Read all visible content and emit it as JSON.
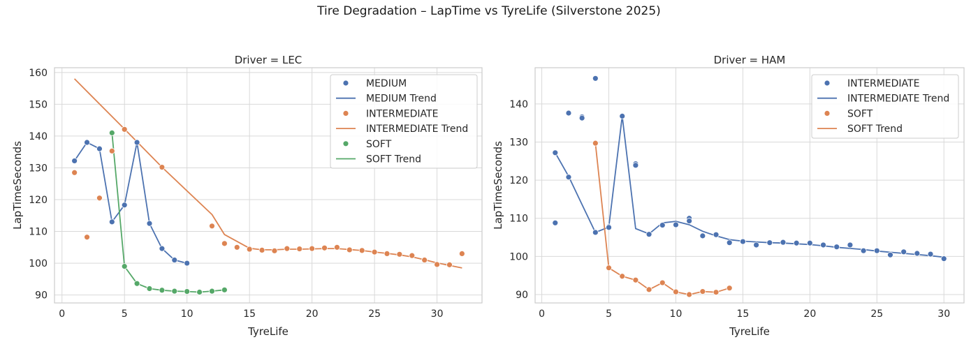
{
  "figure": {
    "title": "Tire Degradation – LapTime vs TyreLife (Silverstone 2025)"
  },
  "colors": {
    "MEDIUM": "#4c72b0",
    "INTERMEDIATE_LEC": "#dd8452",
    "SOFT_LEC": "#55a868",
    "INTERMEDIATE_HAM": "#4c72b0",
    "SOFT_HAM": "#dd8452",
    "grid": "#d9d9d9",
    "frame": "#cccccc"
  },
  "chart_data": [
    {
      "type": "scatter",
      "title": "Driver = LEC",
      "xlabel": "TyreLife",
      "ylabel": "LapTimeSeconds",
      "xlim": [
        -0.6,
        33.6
      ],
      "ylim": [
        87.5,
        161.5
      ],
      "xticks": [
        0,
        5,
        10,
        15,
        20,
        25,
        30
      ],
      "yticks": [
        90,
        100,
        110,
        120,
        130,
        140,
        150,
        160
      ],
      "grid": true,
      "legend_position": "top-right",
      "series": [
        {
          "name": "MEDIUM",
          "color": "#4c72b0",
          "points": [
            [
              1,
              132.2
            ],
            [
              2,
              138
            ],
            [
              3,
              136
            ],
            [
              4,
              113
            ],
            [
              5,
              118.3
            ],
            [
              6,
              138
            ],
            [
              7,
              112.5
            ],
            [
              8,
              104.6
            ],
            [
              9,
              101
            ],
            [
              10,
              100
            ]
          ],
          "trend": {
            "name": "MEDIUM Trend",
            "points": [
              [
                1,
                132.2
              ],
              [
                2,
                138
              ],
              [
                3,
                136
              ],
              [
                4,
                113
              ],
              [
                5,
                118.3
              ],
              [
                6,
                138
              ],
              [
                7,
                112.5
              ],
              [
                8,
                104.6
              ],
              [
                9,
                101
              ],
              [
                10,
                100
              ]
            ]
          }
        },
        {
          "name": "INTERMEDIATE",
          "color": "#dd8452",
          "points": [
            [
              1,
              128.5
            ],
            [
              2,
              108.2
            ],
            [
              3,
              120.5
            ],
            [
              4,
              135.3
            ],
            [
              5,
              142.1
            ],
            [
              8,
              130.2
            ],
            [
              12,
              111.7
            ],
            [
              13,
              106.2
            ],
            [
              14,
              105
            ],
            [
              15,
              104.4
            ],
            [
              16,
              104.1
            ],
            [
              17,
              103.9
            ],
            [
              18,
              104.6
            ],
            [
              19,
              104.5
            ],
            [
              20,
              104.6
            ],
            [
              21,
              104.8
            ],
            [
              22,
              105
            ],
            [
              23,
              104.2
            ],
            [
              24,
              104
            ],
            [
              25,
              103.5
            ],
            [
              26,
              103
            ],
            [
              27,
              102.8
            ],
            [
              28,
              102.4
            ],
            [
              29,
              101
            ],
            [
              30,
              99.6
            ],
            [
              31,
              99.5
            ],
            [
              32,
              103
            ]
          ],
          "trend": {
            "name": "INTERMEDIATE Trend",
            "points": [
              [
                1,
                158
              ],
              [
                5,
                142.2
              ],
              [
                8,
                130.2
              ],
              [
                12,
                115.3
              ],
              [
                13,
                109
              ],
              [
                15,
                104.7
              ],
              [
                16,
                104.2
              ],
              [
                17,
                104.2
              ],
              [
                18,
                104.4
              ],
              [
                19,
                104.4
              ],
              [
                20,
                104.5
              ],
              [
                21,
                104.6
              ],
              [
                22,
                104.6
              ],
              [
                23,
                104.3
              ],
              [
                24,
                104
              ],
              [
                25,
                103.5
              ],
              [
                26,
                103.1
              ],
              [
                27,
                102.6
              ],
              [
                28,
                102
              ],
              [
                29,
                101.1
              ],
              [
                30,
                100.1
              ],
              [
                31,
                99.3
              ],
              [
                32,
                98.5
              ]
            ]
          }
        },
        {
          "name": "SOFT",
          "color": "#55a868",
          "points": [
            [
              4,
              141
            ],
            [
              5,
              99
            ],
            [
              6,
              93.6
            ],
            [
              7,
              92
            ],
            [
              8,
              91.5
            ],
            [
              9,
              91.2
            ],
            [
              10,
              91.1
            ],
            [
              11,
              90.9
            ],
            [
              12,
              91.2
            ],
            [
              13,
              91.6
            ]
          ],
          "trend": {
            "name": "SOFT Trend",
            "points": [
              [
                4,
                141
              ],
              [
                5,
                99
              ],
              [
                6,
                93.6
              ],
              [
                7,
                92
              ],
              [
                8,
                91.5
              ],
              [
                9,
                91.2
              ],
              [
                10,
                91.1
              ],
              [
                11,
                90.9
              ],
              [
                12,
                91.2
              ],
              [
                13,
                91.6
              ]
            ]
          }
        }
      ]
    },
    {
      "type": "scatter",
      "title": "Driver = HAM",
      "xlabel": "TyreLife",
      "ylabel": "LapTimeSeconds",
      "xlim": [
        -0.5,
        31.5
      ],
      "ylim": [
        87.8,
        149.5
      ],
      "xticks": [
        0,
        5,
        10,
        15,
        20,
        25,
        30
      ],
      "yticks": [
        90,
        100,
        110,
        120,
        130,
        140
      ],
      "grid": true,
      "legend_position": "top-right",
      "series": [
        {
          "name": "INTERMEDIATE",
          "color": "#4c72b0",
          "points": [
            [
              1,
              127.2
            ],
            [
              1,
              108.8
            ],
            [
              2,
              137.6
            ],
            [
              2,
              120.8
            ],
            [
              3,
              136.6
            ],
            [
              3,
              136.3
            ],
            [
              4,
              146.7
            ],
            [
              4,
              106.3
            ],
            [
              5,
              107.8
            ],
            [
              5,
              107.6
            ],
            [
              6,
              136.8
            ],
            [
              7,
              124.3
            ],
            [
              7,
              123.9
            ],
            [
              8,
              105.8
            ],
            [
              9,
              108.2
            ],
            [
              10,
              108.3
            ],
            [
              11,
              110
            ],
            [
              11,
              109.3
            ],
            [
              12,
              105.4
            ],
            [
              13,
              105.7
            ],
            [
              14,
              103.6
            ],
            [
              15,
              103.9
            ],
            [
              16,
              103
            ],
            [
              17,
              103.6
            ],
            [
              18,
              103.7
            ],
            [
              19,
              103.5
            ],
            [
              20,
              103.5
            ],
            [
              21,
              103
            ],
            [
              22,
              102.5
            ],
            [
              23,
              103
            ],
            [
              24,
              101.5
            ],
            [
              25,
              101.5
            ],
            [
              26,
              100.4
            ],
            [
              27,
              101.2
            ],
            [
              28,
              100.8
            ],
            [
              29,
              100.6
            ],
            [
              30,
              99.4
            ]
          ],
          "trend": {
            "name": "INTERMEDIATE Trend",
            "points": [
              [
                1,
                127.2
              ],
              [
                2,
                121
              ],
              [
                3,
                113.6
              ],
              [
                4,
                106.3
              ],
              [
                5,
                107.7
              ],
              [
                6,
                136.8
              ],
              [
                7,
                107.3
              ],
              [
                8,
                105.9
              ],
              [
                9,
                108.8
              ],
              [
                10,
                109.2
              ],
              [
                11,
                108.3
              ],
              [
                12,
                106.6
              ],
              [
                13,
                105.4
              ],
              [
                14,
                104.4
              ],
              [
                15,
                104
              ],
              [
                16,
                103.8
              ],
              [
                17,
                103.6
              ],
              [
                18,
                103.5
              ],
              [
                19,
                103.3
              ],
              [
                20,
                103.1
              ],
              [
                21,
                102.8
              ],
              [
                22,
                102.4
              ],
              [
                23,
                102.1
              ],
              [
                24,
                101.8
              ],
              [
                25,
                101.4
              ],
              [
                26,
                101.1
              ],
              [
                27,
                100.8
              ],
              [
                28,
                100.5
              ],
              [
                29,
                100.2
              ],
              [
                30,
                99.8
              ]
            ]
          }
        },
        {
          "name": "SOFT",
          "color": "#dd8452",
          "points": [
            [
              4,
              129.7
            ],
            [
              5,
              97
            ],
            [
              6,
              94.8
            ],
            [
              7,
              93.8
            ],
            [
              8,
              91.3
            ],
            [
              9,
              93.1
            ],
            [
              10,
              90.7
            ],
            [
              11,
              90
            ],
            [
              12,
              90.8
            ],
            [
              13,
              90.6
            ],
            [
              14,
              91.7
            ]
          ],
          "trend": {
            "name": "SOFT Trend",
            "points": [
              [
                4,
                129.7
              ],
              [
                5,
                97
              ],
              [
                6,
                94.8
              ],
              [
                7,
                93.8
              ],
              [
                8,
                91.3
              ],
              [
                9,
                93.1
              ],
              [
                10,
                90.7
              ],
              [
                11,
                90
              ],
              [
                12,
                90.8
              ],
              [
                13,
                90.6
              ],
              [
                14,
                91.7
              ]
            ]
          }
        }
      ]
    }
  ]
}
